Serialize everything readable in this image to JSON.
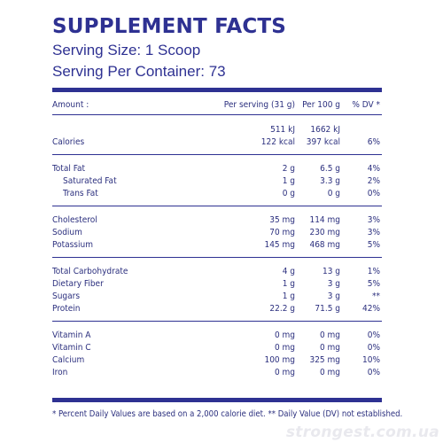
{
  "title": "SUPPLEMENT FACTS",
  "serving_size": "Serving Size: 1 Scoop",
  "servings_per_container": "Serving Per Container: 73",
  "header": {
    "amount": "Amount :",
    "per_serving": "Per serving (31 g)",
    "per_100g": "Per 100 g",
    "dv": "% DV *"
  },
  "energy": {
    "kj": {
      "label": "",
      "per_serving": "511 kJ",
      "per_100g": "1662 kJ",
      "dv": ""
    },
    "kcal": {
      "label": "Calories",
      "per_serving": "122 kcal",
      "per_100g": "397 kcal",
      "dv": "6%"
    }
  },
  "fats": [
    {
      "label": "Total Fat",
      "per_serving": "2 g",
      "per_100g": "6.5 g",
      "dv": "4%"
    },
    {
      "label": "Saturated Fat",
      "per_serving": "1 g",
      "per_100g": "3.3 g",
      "dv": "2%"
    },
    {
      "label": "Trans Fat",
      "per_serving": "0 g",
      "per_100g": "0 g",
      "dv": "0%"
    }
  ],
  "minerals1": [
    {
      "label": "Cholesterol",
      "per_serving": "35 mg",
      "per_100g": "114 mg",
      "dv": "3%"
    },
    {
      "label": "Sodium",
      "per_serving": "70 mg",
      "per_100g": "230 mg",
      "dv": "3%"
    },
    {
      "label": "Potassium",
      "per_serving": "145 mg",
      "per_100g": "468 mg",
      "dv": "5%"
    }
  ],
  "carbs": [
    {
      "label": "Total Carbohydrate",
      "per_serving": "4 g",
      "per_100g": "13 g",
      "dv": "1%"
    },
    {
      "label": "Dietary Fiber",
      "per_serving": "1 g",
      "per_100g": "3 g",
      "dv": "5%"
    },
    {
      "label": "Sugars",
      "per_serving": "1 g",
      "per_100g": "3 g",
      "dv": "**"
    },
    {
      "label": "Protein",
      "per_serving": "22.2 g",
      "per_100g": "71.5 g",
      "dv": "42%"
    }
  ],
  "vitamins": [
    {
      "label": "Vitamin A",
      "per_serving": "0 mg",
      "per_100g": "0 mg",
      "dv": "0%"
    },
    {
      "label": "Vitamin C",
      "per_serving": "0 mg",
      "per_100g": "0 mg",
      "dv": "0%"
    },
    {
      "label": "Calcium",
      "per_serving": "100 mg",
      "per_100g": "325 mg",
      "dv": "10%"
    },
    {
      "label": "Iron",
      "per_serving": "0 mg",
      "per_100g": "0 mg",
      "dv": "0%"
    }
  ],
  "footnote": "* Percent Daily Values are based on a 2,000 calorie diet. ** Daily Value (DV) not established.",
  "watermark": "strongest.com.ua",
  "colors": {
    "ink": "#2e3192",
    "watermark": "#e9e9ee"
  }
}
